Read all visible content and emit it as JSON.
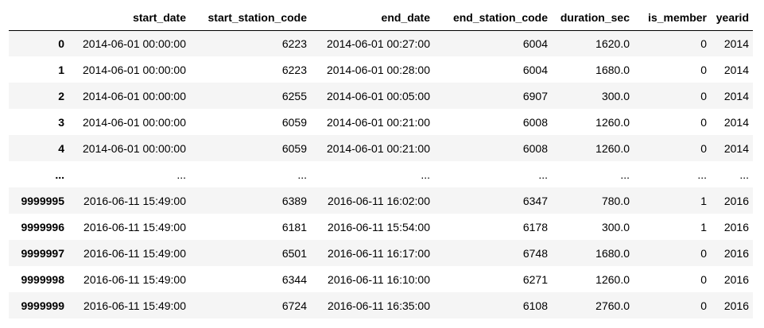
{
  "dataframe": {
    "columns": [
      "",
      "start_date",
      "start_station_code",
      "end_date",
      "end_station_code",
      "duration_sec",
      "is_member",
      "yearid"
    ],
    "rows": [
      {
        "index": "0",
        "cells": [
          "2014-06-01 00:00:00",
          "6223",
          "2014-06-01 00:27:00",
          "6004",
          "1620.0",
          "0",
          "2014"
        ]
      },
      {
        "index": "1",
        "cells": [
          "2014-06-01 00:00:00",
          "6223",
          "2014-06-01 00:28:00",
          "6004",
          "1680.0",
          "0",
          "2014"
        ]
      },
      {
        "index": "2",
        "cells": [
          "2014-06-01 00:00:00",
          "6255",
          "2014-06-01 00:05:00",
          "6907",
          "300.0",
          "0",
          "2014"
        ]
      },
      {
        "index": "3",
        "cells": [
          "2014-06-01 00:00:00",
          "6059",
          "2014-06-01 00:21:00",
          "6008",
          "1260.0",
          "0",
          "2014"
        ]
      },
      {
        "index": "4",
        "cells": [
          "2014-06-01 00:00:00",
          "6059",
          "2014-06-01 00:21:00",
          "6008",
          "1260.0",
          "0",
          "2014"
        ]
      },
      {
        "index": "...",
        "cells": [
          "...",
          "...",
          "...",
          "...",
          "...",
          "...",
          "..."
        ]
      },
      {
        "index": "9999995",
        "cells": [
          "2016-06-11 15:49:00",
          "6389",
          "2016-06-11 16:02:00",
          "6347",
          "780.0",
          "1",
          "2016"
        ]
      },
      {
        "index": "9999996",
        "cells": [
          "2016-06-11 15:49:00",
          "6181",
          "2016-06-11 15:54:00",
          "6178",
          "300.0",
          "1",
          "2016"
        ]
      },
      {
        "index": "9999997",
        "cells": [
          "2016-06-11 15:49:00",
          "6501",
          "2016-06-11 16:17:00",
          "6748",
          "1680.0",
          "0",
          "2016"
        ]
      },
      {
        "index": "9999998",
        "cells": [
          "2016-06-11 15:49:00",
          "6344",
          "2016-06-11 16:10:00",
          "6271",
          "1260.0",
          "0",
          "2016"
        ]
      },
      {
        "index": "9999999",
        "cells": [
          "2016-06-11 15:49:00",
          "6724",
          "2016-06-11 16:35:00",
          "6108",
          "2760.0",
          "0",
          "2016"
        ]
      }
    ]
  }
}
